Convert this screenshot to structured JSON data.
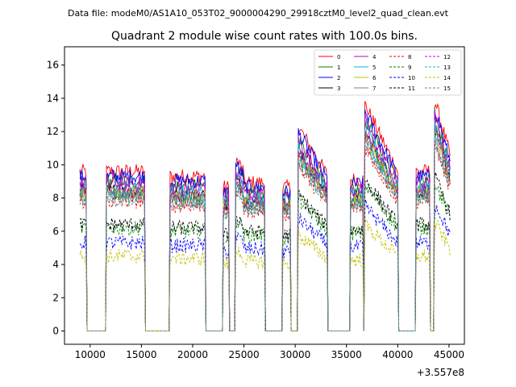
{
  "figure": {
    "supertitle": "Data file: modeM0/AS1A10_053T02_9000004290_29918cztM0_level2_quad_clean.evt"
  },
  "chart_data": {
    "type": "line",
    "title": "Quadrant 2 module wise count rates with 100.0s bins.",
    "xlabel": "",
    "ylabel": "",
    "x_offset_label": "+3.557e8",
    "xlim": [
      7500,
      46500
    ],
    "ylim": [
      -0.8,
      17.1
    ],
    "x_ticks": [
      10000,
      15000,
      20000,
      25000,
      30000,
      35000,
      40000,
      45000
    ],
    "x_tick_labels": [
      "10000",
      "15000",
      "20000",
      "25000",
      "30000",
      "35000",
      "40000",
      "45000"
    ],
    "y_ticks": [
      0,
      2,
      4,
      6,
      8,
      10,
      12,
      14,
      16
    ],
    "y_tick_labels": [
      "0",
      "2",
      "4",
      "6",
      "8",
      "10",
      "12",
      "14",
      "16"
    ],
    "legend_position": "top-right",
    "on_segments": [
      [
        9000,
        9600
      ],
      [
        11600,
        15300
      ],
      [
        17800,
        21200
      ],
      [
        23000,
        23500
      ],
      [
        24200,
        27000
      ],
      [
        28800,
        29500
      ],
      [
        30300,
        33100
      ],
      [
        35400,
        36600
      ],
      [
        36800,
        40000
      ],
      [
        41800,
        43100
      ],
      [
        43600,
        45100
      ]
    ],
    "series": [
      {
        "name": "0",
        "color": "#ff0000",
        "dash": "solid",
        "level": 9.6
      },
      {
        "name": "1",
        "color": "#008000",
        "dash": "solid",
        "level": 9.0
      },
      {
        "name": "2",
        "color": "#0000ff",
        "dash": "solid",
        "level": 9.3
      },
      {
        "name": "3",
        "color": "#000000",
        "dash": "solid",
        "level": 8.4
      },
      {
        "name": "4",
        "color": "#bf00bf",
        "dash": "solid",
        "level": 8.9
      },
      {
        "name": "5",
        "color": "#00bfbf",
        "dash": "solid",
        "level": 8.6
      },
      {
        "name": "6",
        "color": "#bfbf00",
        "dash": "solid",
        "level": 8.3
      },
      {
        "name": "7",
        "color": "#808080",
        "dash": "solid",
        "level": 8.2
      },
      {
        "name": "8",
        "color": "#ff0000",
        "dash": "dashed",
        "level": 7.8
      },
      {
        "name": "9",
        "color": "#008000",
        "dash": "dashed",
        "level": 6.2
      },
      {
        "name": "10",
        "color": "#0000ff",
        "dash": "dashed",
        "level": 5.3
      },
      {
        "name": "11",
        "color": "#000000",
        "dash": "dashed",
        "level": 6.4
      },
      {
        "name": "12",
        "color": "#bf00bf",
        "dash": "dashed",
        "level": 8.5
      },
      {
        "name": "13",
        "color": "#00bfbf",
        "dash": "dashed",
        "level": 8.0
      },
      {
        "name": "14",
        "color": "#bfbf00",
        "dash": "dashed",
        "level": 4.5
      },
      {
        "name": "15",
        "color": "#808080",
        "dash": "dashed",
        "level": 7.9
      }
    ]
  }
}
